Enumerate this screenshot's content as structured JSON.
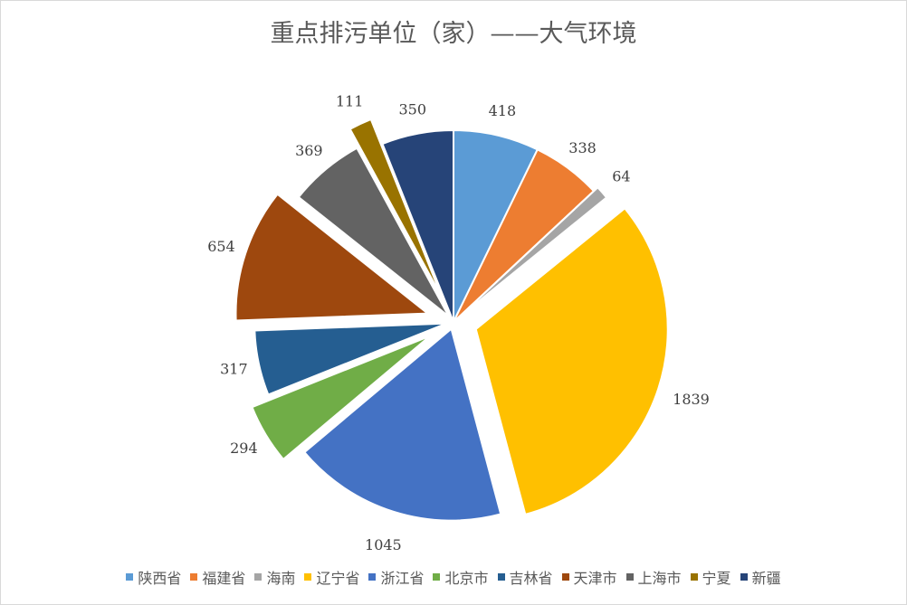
{
  "chart_data": {
    "type": "pie",
    "title": "重点排污单位（家）——大气环境",
    "categories": [
      "陕西省",
      "福建省",
      "海南",
      "辽宁省",
      "浙江省",
      "北京市",
      "吉林省",
      "天津市",
      "上海市",
      "宁夏",
      "新疆"
    ],
    "values": [
      418,
      338,
      64,
      1839,
      1045,
      294,
      317,
      654,
      369,
      111,
      350
    ],
    "colors": [
      "#5B9BD5",
      "#ED7D31",
      "#A5A5A5",
      "#FFC000",
      "#4472C4",
      "#70AD47",
      "#255E91",
      "#9E480E",
      "#636363",
      "#997300",
      "#264478"
    ],
    "legend_position": "bottom",
    "data_labels": true
  }
}
